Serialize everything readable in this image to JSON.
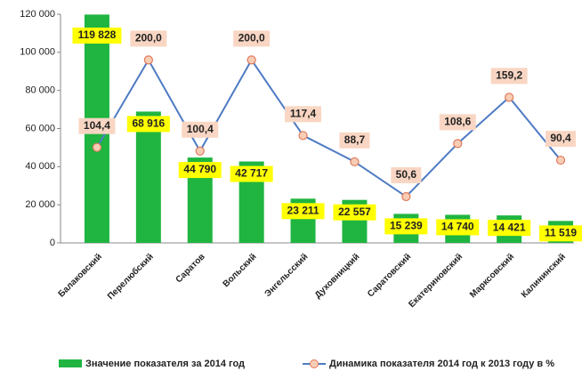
{
  "chart_data": {
    "type": "bar_line",
    "categories": [
      "Балаковский",
      "Перелюбский",
      "Саратов",
      "Вольский",
      "Энгельсский",
      "Духовницкий",
      "Саратовский",
      "Екатериновский",
      "Марксовский",
      "Калининский"
    ],
    "series": [
      {
        "name": "Значение показателя за 2014 год",
        "type": "bar",
        "color": "#1fb540",
        "values": [
          119828,
          68916,
          44790,
          42717,
          23211,
          22557,
          15239,
          14740,
          14421,
          11519
        ],
        "value_labels": [
          "119 828",
          "68 916",
          "44 790",
          "42 717",
          "23 211",
          "22 557",
          "15 239",
          "14 740",
          "14 421",
          "11 519"
        ]
      },
      {
        "name": "Динамика показателя 2014 год к 2013 году в %",
        "type": "line",
        "axis": "y2",
        "color": "#4f7bc4",
        "values": [
          104.4,
          200.0,
          100.4,
          200.0,
          117.4,
          88.7,
          50.6,
          108.6,
          159.2,
          90.4
        ],
        "value_labels": [
          "104,4",
          "200,0",
          "100,4",
          "200,0",
          "117,4",
          "88,7",
          "50,6",
          "108,6",
          "159,2",
          "90,4"
        ]
      }
    ],
    "ylim": [
      0,
      120000
    ],
    "yticks": [
      0,
      {
        "value": 20000,
        "label": "20 000"
      },
      {
        "value": 40000,
        "label": "40 000"
      },
      {
        "value": 60000,
        "label": "60 000"
      },
      {
        "value": 80000,
        "label": "80 000"
      },
      {
        "value": 100000,
        "label": "100 000"
      },
      {
        "value": 120000,
        "label": "120 000"
      }
    ],
    "y2lim": [
      0,
      250
    ],
    "grid": false
  }
}
